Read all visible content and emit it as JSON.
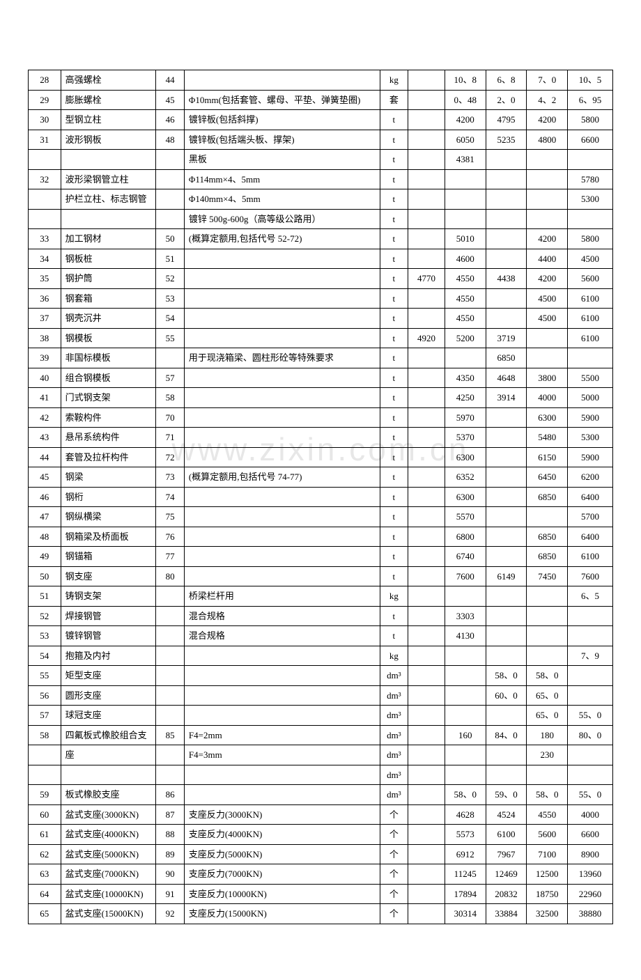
{
  "watermark": "www.zixin.com.cn",
  "columns": {
    "count": 10,
    "align": [
      "center",
      "left",
      "center",
      "left",
      "center",
      "center",
      "center",
      "center",
      "center",
      "center"
    ]
  },
  "rows": [
    [
      "28",
      "高强螺栓",
      "44",
      "",
      "kg",
      "",
      "10、8",
      "6、8",
      "7、0",
      "10、5"
    ],
    [
      "29",
      "膨胀螺栓",
      "45",
      "Φ10mm(包括套管、螺母、平垫、弹簧垫圈)",
      "套",
      "",
      "0、48",
      "2、0",
      "4、2",
      "6、95"
    ],
    [
      "30",
      "型钢立柱",
      "46",
      "镀锌板(包括斜撑)",
      "t",
      "",
      "4200",
      "4795",
      "4200",
      "5800"
    ],
    [
      "31",
      "波形钢板",
      "48",
      "镀锌板(包括端头板、撑架)",
      "t",
      "",
      "6050",
      "5235",
      "4800",
      "6600"
    ],
    [
      "",
      "",
      "",
      "黑板",
      "t",
      "",
      "4381",
      "",
      "",
      ""
    ],
    [
      "32",
      "波形梁钢管立柱",
      "",
      "Φ114mm×4、5mm",
      "t",
      "",
      "",
      "",
      "",
      "5780"
    ],
    [
      "",
      "护栏立柱、标志钢管",
      "",
      "Φ140mm×4、5mm",
      "t",
      "",
      "",
      "",
      "",
      "5300"
    ],
    [
      "",
      "",
      "",
      "镀锌 500g-600g（高等级公路用）",
      "t",
      "",
      "",
      "",
      "",
      ""
    ],
    [
      "33",
      "加工钢材",
      "50",
      "(概算定额用,包括代号 52-72)",
      "t",
      "",
      "5010",
      "",
      "4200",
      "5800"
    ],
    [
      "34",
      "钢板桩",
      "51",
      "",
      "t",
      "",
      "4600",
      "",
      "4400",
      "4500"
    ],
    [
      "35",
      "钢护筒",
      "52",
      "",
      "t",
      "4770",
      "4550",
      "4438",
      "4200",
      "5600"
    ],
    [
      "36",
      "钢套箱",
      "53",
      "",
      "t",
      "",
      "4550",
      "",
      "4500",
      "6100"
    ],
    [
      "37",
      "钢壳沉井",
      "54",
      "",
      "t",
      "",
      "4550",
      "",
      "4500",
      "6100"
    ],
    [
      "38",
      "钢模板",
      "55",
      "",
      "t",
      "4920",
      "5200",
      "3719",
      "",
      "6100"
    ],
    [
      "39",
      "非国标模板",
      "",
      "用于现浇箱梁、圆柱形砼等特殊要求",
      "t",
      "",
      "",
      "6850",
      "",
      ""
    ],
    [
      "40",
      "组合钢模板",
      "57",
      "",
      "t",
      "",
      "4350",
      "4648",
      "3800",
      "5500"
    ],
    [
      "41",
      "门式钢支架",
      "58",
      "",
      "t",
      "",
      "4250",
      "3914",
      "4000",
      "5000"
    ],
    [
      "42",
      "索鞍构件",
      "70",
      "",
      "t",
      "",
      "5970",
      "",
      "6300",
      "5900"
    ],
    [
      "43",
      "悬吊系统构件",
      "71",
      "",
      "t",
      "",
      "5370",
      "",
      "5480",
      "5300"
    ],
    [
      "44",
      "套管及拉杆构件",
      "72",
      "",
      "t",
      "",
      "6300",
      "",
      "6150",
      "5900"
    ],
    [
      "45",
      "钢梁",
      "73",
      "(概算定额用,包括代号 74-77)",
      "t",
      "",
      "6352",
      "",
      "6450",
      "6200"
    ],
    [
      "46",
      "钢桁",
      "74",
      "",
      "t",
      "",
      "6300",
      "",
      "6850",
      "6400"
    ],
    [
      "47",
      "钢纵横梁",
      "75",
      "",
      "t",
      "",
      "5570",
      "",
      "",
      "5700"
    ],
    [
      "48",
      "钢箱梁及桥面板",
      "76",
      "",
      "t",
      "",
      "6800",
      "",
      "6850",
      "6400"
    ],
    [
      "49",
      "钢锚箱",
      "77",
      "",
      "t",
      "",
      "6740",
      "",
      "6850",
      "6100"
    ],
    [
      "50",
      "钢支座",
      "80",
      "",
      "t",
      "",
      "7600",
      "6149",
      "7450",
      "7600"
    ],
    [
      "51",
      "铸钢支架",
      "",
      "桥梁栏杆用",
      "kg",
      "",
      "",
      "",
      "",
      "6、5"
    ],
    [
      "52",
      "焊接钢管",
      "",
      "混合规格",
      "t",
      "",
      "3303",
      "",
      "",
      ""
    ],
    [
      "53",
      "镀锌钢管",
      "",
      "混合规格",
      "t",
      "",
      "4130",
      "",
      "",
      ""
    ],
    [
      "54",
      "抱箍及内衬",
      "",
      "",
      "kg",
      "",
      "",
      "",
      "",
      "7、9"
    ],
    [
      "55",
      "矩型支座",
      "",
      "",
      "dm³",
      "",
      "",
      "58、0",
      "58、0",
      ""
    ],
    [
      "56",
      "圆形支座",
      "",
      "",
      "dm³",
      "",
      "",
      "60、0",
      "65、0",
      ""
    ],
    [
      "57",
      "球冠支座",
      "",
      "",
      "dm³",
      "",
      "",
      "",
      "65、0",
      "55、0"
    ],
    [
      "58",
      "四氟板式橡胶组合支",
      "85",
      "F4=2mm",
      "dm³",
      "",
      "160",
      "84、0",
      "180",
      "80、0"
    ],
    [
      "",
      "座",
      "",
      "F4=3mm",
      "dm³",
      "",
      "",
      "",
      "230",
      ""
    ],
    [
      "",
      "",
      "",
      "",
      "dm³",
      "",
      "",
      "",
      "",
      ""
    ],
    [
      "59",
      "板式橡胶支座",
      "86",
      "",
      "dm³",
      "",
      "58、0",
      "59、0",
      "58、0",
      "55、0"
    ],
    [
      "60",
      "盆式支座(3000KN)",
      "87",
      "支座反力(3000KN)",
      "个",
      "",
      "4628",
      "4524",
      "4550",
      "4000"
    ],
    [
      "61",
      "盆式支座(4000KN)",
      "88",
      "支座反力(4000KN)",
      "个",
      "",
      "5573",
      "6100",
      "5600",
      "6600"
    ],
    [
      "62",
      "盆式支座(5000KN)",
      "89",
      "支座反力(5000KN)",
      "个",
      "",
      "6912",
      "7967",
      "7100",
      "8900"
    ],
    [
      "63",
      "盆式支座(7000KN)",
      "90",
      "支座反力(7000KN)",
      "个",
      "",
      "11245",
      "12469",
      "12500",
      "13960"
    ],
    [
      "64",
      "盆式支座(10000KN)",
      "91",
      "支座反力(10000KN)",
      "个",
      "",
      "17894",
      "20832",
      "18750",
      "22960"
    ],
    [
      "65",
      "盆式支座(15000KN)",
      "92",
      "支座反力(15000KN)",
      "个",
      "",
      "30314",
      "33884",
      "32500",
      "38880"
    ]
  ]
}
